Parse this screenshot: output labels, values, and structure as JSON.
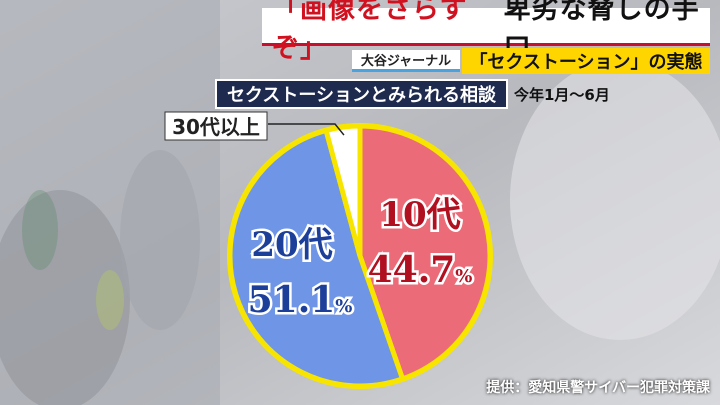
{
  "headline": {
    "quote": "「画像をさらすぞ」",
    "rest": "卑劣な脅しの手口"
  },
  "show_name": "大谷ジャーナル",
  "subtitle": "「セクストーション」の実態",
  "period": "今年1月～6月",
  "source": "提供：愛知県警サイバー犯罪対策課",
  "colors": {
    "red": "#ec6b78",
    "blue": "#6f95e6",
    "yellow": "#f7e500",
    "label_red": "#b01020",
    "label_blue": "#1c3f9a"
  },
  "chart_data": {
    "type": "pie",
    "title": "セクストーションとみられる相談",
    "slices": [
      {
        "name": "10代",
        "value": 44.7,
        "label": "44.7",
        "unit": "%"
      },
      {
        "name": "20代",
        "value": 51.1,
        "label": "51.1",
        "unit": "%"
      },
      {
        "name": "30代以上",
        "value": 4.2,
        "label": "",
        "unit": ""
      }
    ]
  }
}
